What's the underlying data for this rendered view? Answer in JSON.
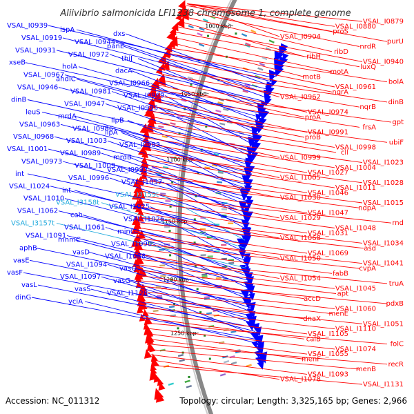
{
  "title": "Aliivibrio salmonicida LFI1238 chromosome 1, complete genome",
  "accession": "Accession: NC_011312",
  "summary": "Topology: circular; Length: 3,325,165 bp; Genes: 2,966",
  "colors": {
    "forward": "#0000ff",
    "reverse": "#ff0000",
    "rna": "#22aadd",
    "backbone": "#888888",
    "marker": "#228822"
  },
  "kbp_marks": [
    "1000 kbp",
    "1050 kbp",
    "1100 kbp",
    "1150 kbp",
    "1200 kbp",
    "1250 kbp"
  ],
  "left_labels": [
    {
      "text": "VSAL_I0939",
      "type": "forward"
    },
    {
      "text": "ispA",
      "type": "forward"
    },
    {
      "text": "dxs",
      "type": "forward"
    },
    {
      "text": "VSAL_I0919",
      "type": "forward"
    },
    {
      "text": "VSAL_I0944",
      "type": "forward"
    },
    {
      "text": "panE",
      "type": "forward"
    },
    {
      "text": "VSAL_I0931",
      "type": "forward"
    },
    {
      "text": "VSAL_I0972",
      "type": "forward"
    },
    {
      "text": "thiJ",
      "type": "forward"
    },
    {
      "text": "xseB",
      "type": "forward"
    },
    {
      "text": "holA",
      "type": "forward"
    },
    {
      "text": "dacA",
      "type": "forward"
    },
    {
      "text": "VSAL_I0967",
      "type": "forward"
    },
    {
      "text": "ahdIC",
      "type": "forward"
    },
    {
      "text": "VSAL_I0966",
      "type": "forward"
    },
    {
      "text": "VSAL_I0946",
      "type": "forward"
    },
    {
      "text": "VSAL_I0981",
      "type": "forward"
    },
    {
      "text": "VSAL_I0969",
      "type": "forward"
    },
    {
      "text": "dinB",
      "type": "forward"
    },
    {
      "text": "VSAL_I0947",
      "type": "forward"
    },
    {
      "text": "VSAL_I0995",
      "type": "forward"
    },
    {
      "text": "leuS",
      "type": "forward"
    },
    {
      "text": "mrdA",
      "type": "forward"
    },
    {
      "text": "lipB",
      "type": "forward"
    },
    {
      "text": "VSAL_I0963",
      "type": "forward"
    },
    {
      "text": "VSAL_I0986",
      "type": "forward"
    },
    {
      "text": "lipA",
      "type": "forward"
    },
    {
      "text": "VSAL_I0968",
      "type": "forward"
    },
    {
      "text": "VSAL_I1003",
      "type": "forward"
    },
    {
      "text": "VSAL_I0983",
      "type": "forward"
    },
    {
      "text": "VSAL_I1001",
      "type": "forward"
    },
    {
      "text": "VSAL_I0989",
      "type": "forward"
    },
    {
      "text": "mrdB",
      "type": "forward"
    },
    {
      "text": "VSAL_I0973",
      "type": "forward"
    },
    {
      "text": "VSAL_I1009",
      "type": "forward"
    },
    {
      "text": "VSAL_I0993",
      "type": "forward"
    },
    {
      "text": "int",
      "type": "forward"
    },
    {
      "text": "VSAL_I0996",
      "type": "forward"
    },
    {
      "text": "VSAL_I1057",
      "type": "forward"
    },
    {
      "text": "VSAL_I1024",
      "type": "forward"
    },
    {
      "text": "int",
      "type": "forward"
    },
    {
      "text": "VSAL_I3159t",
      "type": "rna"
    },
    {
      "text": "VSAL_I1010",
      "type": "forward"
    },
    {
      "text": "VSAL_I3158t",
      "type": "rna"
    },
    {
      "text": "VSAL_I1025",
      "type": "forward"
    },
    {
      "text": "VSAL_I1062",
      "type": "forward"
    },
    {
      "text": "cah",
      "type": "forward"
    },
    {
      "text": "VSAL_I1026",
      "type": "forward"
    },
    {
      "text": "VSAL_I3157t",
      "type": "rna"
    },
    {
      "text": "VSAL_I1061",
      "type": "forward"
    },
    {
      "text": "minC",
      "type": "forward"
    },
    {
      "text": "VSAL_I1091",
      "type": "forward"
    },
    {
      "text": "mnmC",
      "type": "forward"
    },
    {
      "text": "VSAL_I1090",
      "type": "forward"
    },
    {
      "text": "aphB",
      "type": "forward"
    },
    {
      "text": "vasD",
      "type": "forward"
    },
    {
      "text": "VSAL_I1088",
      "type": "forward"
    },
    {
      "text": "vasE",
      "type": "forward"
    },
    {
      "text": "VSAL_I1094",
      "type": "forward"
    },
    {
      "text": "vasQ",
      "type": "forward"
    },
    {
      "text": "vasF",
      "type": "forward"
    },
    {
      "text": "VSAL_I1097",
      "type": "forward"
    },
    {
      "text": "vasG",
      "type": "forward"
    },
    {
      "text": "vasL",
      "type": "forward"
    },
    {
      "text": "vasS",
      "type": "forward"
    },
    {
      "text": "VSAL_I1128",
      "type": "forward"
    },
    {
      "text": "dinG",
      "type": "forward"
    },
    {
      "text": "yciA",
      "type": "forward"
    }
  ],
  "right_labels": [
    {
      "text": "VSAL_I0879",
      "type": "reverse"
    },
    {
      "text": "VSAL_I0880",
      "type": "reverse"
    },
    {
      "text": "proS",
      "type": "reverse"
    },
    {
      "text": "VSAL_I0904",
      "type": "reverse"
    },
    {
      "text": "purU",
      "type": "reverse"
    },
    {
      "text": "nrdR",
      "type": "reverse"
    },
    {
      "text": "ribD",
      "type": "reverse"
    },
    {
      "text": "ribH",
      "type": "reverse"
    },
    {
      "text": "VSAL_I0940",
      "type": "reverse"
    },
    {
      "text": "luxQ",
      "type": "reverse"
    },
    {
      "text": "motA",
      "type": "reverse"
    },
    {
      "text": "motB",
      "type": "reverse"
    },
    {
      "text": "bolA",
      "type": "reverse"
    },
    {
      "text": "VSAL_I0961",
      "type": "reverse"
    },
    {
      "text": "nqrA",
      "type": "reverse"
    },
    {
      "text": "VSAL_I0962",
      "type": "reverse"
    },
    {
      "text": "dinB",
      "type": "reverse"
    },
    {
      "text": "nqrB",
      "type": "reverse"
    },
    {
      "text": "VSAL_I0974",
      "type": "reverse"
    },
    {
      "text": "proA",
      "type": "reverse"
    },
    {
      "text": "gpt",
      "type": "reverse"
    },
    {
      "text": "frsA",
      "type": "reverse"
    },
    {
      "text": "VSAL_I0991",
      "type": "reverse"
    },
    {
      "text": "proB",
      "type": "reverse"
    },
    {
      "text": "ubiF",
      "type": "reverse"
    },
    {
      "text": "VSAL_I0998",
      "type": "reverse"
    },
    {
      "text": "cll",
      "type": "reverse"
    },
    {
      "text": "VSAL_I0999",
      "type": "reverse"
    },
    {
      "text": "VSAL_I1023",
      "type": "reverse"
    },
    {
      "text": "VSAL_I1004",
      "type": "reverse"
    },
    {
      "text": "VSAL_I1027",
      "type": "reverse"
    },
    {
      "text": "VSAL_I1005",
      "type": "reverse"
    },
    {
      "text": "VSAL_I1028",
      "type": "reverse"
    },
    {
      "text": "VSAL_I1011",
      "type": "reverse"
    },
    {
      "text": "VSAL_I1046",
      "type": "reverse"
    },
    {
      "text": "VSAL_I1030",
      "type": "reverse"
    },
    {
      "text": "VSAL_I1015",
      "type": "reverse"
    },
    {
      "text": "ndpA",
      "type": "reverse"
    },
    {
      "text": "VSAL_I1047",
      "type": "reverse"
    },
    {
      "text": "VSAL_I1029",
      "type": "reverse"
    },
    {
      "text": "rnd",
      "type": "reverse"
    },
    {
      "text": "VSAL_I1048",
      "type": "reverse"
    },
    {
      "text": "VSAL_I1031",
      "type": "reverse"
    },
    {
      "text": "VSAL_I1068",
      "type": "reverse"
    },
    {
      "text": "VSAL_I1034",
      "type": "reverse"
    },
    {
      "text": "asd",
      "type": "reverse"
    },
    {
      "text": "VSAL_I1069",
      "type": "reverse"
    },
    {
      "text": "VSAL_I1050",
      "type": "reverse"
    },
    {
      "text": "VSAL_I1041",
      "type": "reverse"
    },
    {
      "text": "cvpA",
      "type": "reverse"
    },
    {
      "text": "fabB",
      "type": "reverse"
    },
    {
      "text": "VSAL_I1054",
      "type": "reverse"
    },
    {
      "text": "truA",
      "type": "reverse"
    },
    {
      "text": "VSAL_I1045",
      "type": "reverse"
    },
    {
      "text": "apt",
      "type": "reverse"
    },
    {
      "text": "accD",
      "type": "reverse"
    },
    {
      "text": "pdxB",
      "type": "reverse"
    },
    {
      "text": "VSAL_I1060",
      "type": "reverse"
    },
    {
      "text": "menE",
      "type": "reverse"
    },
    {
      "text": "dnaX",
      "type": "reverse"
    },
    {
      "text": "VSAL_I1051",
      "type": "reverse"
    },
    {
      "text": "VSAL_I1110",
      "type": "reverse"
    },
    {
      "text": "VSAL_I1105",
      "type": "reverse"
    },
    {
      "text": "calB",
      "type": "reverse"
    },
    {
      "text": "folC",
      "type": "reverse"
    },
    {
      "text": "VSAL_I1074",
      "type": "reverse"
    },
    {
      "text": "VSAL_I1055",
      "type": "reverse"
    },
    {
      "text": "menF",
      "type": "reverse"
    },
    {
      "text": "recR",
      "type": "reverse"
    },
    {
      "text": "menB",
      "type": "reverse"
    },
    {
      "text": "VSAL_I1093",
      "type": "reverse"
    },
    {
      "text": "VSAL_I1078",
      "type": "reverse"
    },
    {
      "text": "VSAL_I1131",
      "type": "reverse"
    }
  ]
}
